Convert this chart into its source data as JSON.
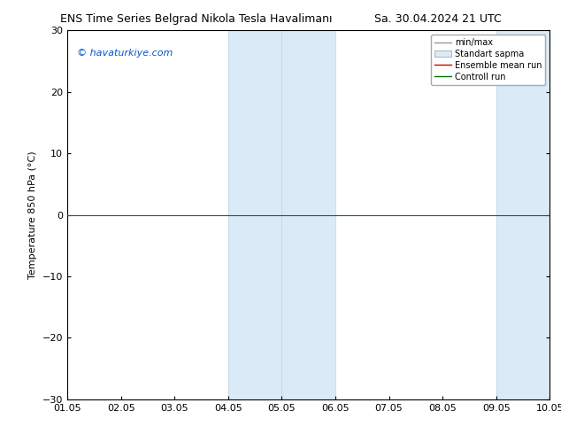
{
  "title_left": "ENS Time Series Belgrad Nikola Tesla Havalimanı",
  "title_right": "Sa. 30.04.2024 21 UTC",
  "ylabel": "Temperature 850 hPa (°C)",
  "ylim": [
    -30,
    30
  ],
  "yticks": [
    -30,
    -20,
    -10,
    0,
    10,
    20,
    30
  ],
  "xlim": [
    0,
    9
  ],
  "xtick_labels": [
    "01.05",
    "02.05",
    "03.05",
    "04.05",
    "05.05",
    "06.05",
    "07.05",
    "08.05",
    "09.05",
    "10.05"
  ],
  "xtick_positions": [
    0,
    1,
    2,
    3,
    4,
    5,
    6,
    7,
    8,
    9
  ],
  "watermark": "© havaturkiye.com",
  "watermark_color": "#0055cc",
  "shaded_bands": [
    {
      "xmin": 3,
      "xmax": 4,
      "color": "#daeaf7"
    },
    {
      "xmin": 4,
      "xmax": 5,
      "color": "#daeaf7"
    },
    {
      "xmin": 8,
      "xmax": 9,
      "color": "#daeaf7"
    }
  ],
  "vertical_lines_light": [
    3,
    4,
    5,
    8,
    9
  ],
  "vertical_line_color": "#b8d4e8",
  "control_run_y": 0,
  "control_run_color": "#007700",
  "control_run_lw": 0.8,
  "ensemble_mean_color": "#cc0000",
  "minmax_color": "#999999",
  "stddev_color": "#cccccc",
  "legend_labels": [
    "min/max",
    "Standart sapma",
    "Ensemble mean run",
    "Controll run"
  ],
  "bg_color": "#ffffff",
  "axes_bg_color": "#ffffff",
  "border_color": "#000000",
  "font_size": 8,
  "title_fontsize": 9
}
